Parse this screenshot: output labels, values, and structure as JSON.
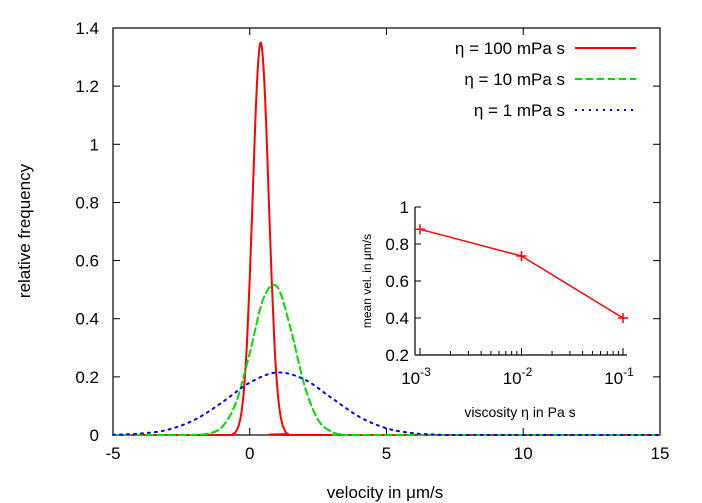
{
  "chart_data": [
    {
      "type": "line",
      "xlabel": "velocity in μm/s",
      "ylabel": "relative frequency",
      "xlim": [
        -5,
        15
      ],
      "ylim": [
        0,
        1.4
      ],
      "xticks": [
        -5,
        0,
        5,
        10,
        15
      ],
      "yticks": [
        0,
        0.2,
        0.4,
        0.6,
        0.8,
        1,
        1.2,
        1.4
      ],
      "xtick_labels": [
        "-5",
        "0",
        "5",
        "10",
        "15"
      ],
      "ytick_labels": [
        "0",
        "0.2",
        "0.4",
        "0.6",
        "0.8",
        "1",
        "1.2",
        "1.4"
      ],
      "grid": false,
      "legend_placement": "top-right",
      "series": [
        {
          "name": "η = 100 mPa s",
          "color": "#ff0000",
          "style": "solid",
          "x": [
            -5,
            -1,
            -0.6,
            -0.5,
            -0.4,
            -0.3,
            -0.2,
            -0.1,
            0,
            0.1,
            0.2,
            0.3,
            0.4,
            0.5,
            0.6,
            0.7,
            0.8,
            0.9,
            1.0,
            1.1,
            1.2,
            1.3,
            1.4,
            1.8,
            15
          ],
          "y": [
            0,
            0,
            0.004,
            0.013,
            0.034,
            0.08,
            0.17,
            0.32,
            0.54,
            0.8,
            1.07,
            1.27,
            1.35,
            1.27,
            1.07,
            0.8,
            0.54,
            0.32,
            0.17,
            0.08,
            0.034,
            0.013,
            0.004,
            0,
            0
          ]
        },
        {
          "name": "η = 10 mPa s",
          "color": "#00dd00",
          "style": "dashed",
          "x": [
            -5,
            -2.5,
            -2,
            -1.5,
            -1,
            -0.5,
            0,
            0.5,
            1,
            1.5,
            2,
            2.5,
            3,
            3.5,
            4,
            15
          ],
          "y": [
            0,
            0,
            0.001,
            0.005,
            0.029,
            0.112,
            0.282,
            0.469,
            0.51,
            0.364,
            0.171,
            0.052,
            0.011,
            0.001,
            0,
            0
          ]
        },
        {
          "name": "η = 1 mPa s",
          "color": "#0000ff",
          "style": "dotted",
          "x": [
            -5,
            -4,
            -3,
            -2,
            -1,
            0,
            1,
            2,
            3,
            4,
            5,
            6,
            7,
            8,
            15
          ],
          "y": [
            0.001,
            0.005,
            0.018,
            0.053,
            0.113,
            0.18,
            0.215,
            0.191,
            0.127,
            0.063,
            0.023,
            0.006,
            0.001,
            0,
            0
          ]
        }
      ]
    },
    {
      "type": "line",
      "xlabel": "viscosity η in Pa s",
      "ylabel": "mean vel. in μm/s",
      "xscale": "log",
      "xlim": [
        0.001,
        0.1
      ],
      "ylim": [
        0.2,
        1
      ],
      "xtick_labels": [
        "10",
        "10",
        "10"
      ],
      "xtick_exponents": [
        "-3",
        "-2",
        "-1"
      ],
      "yticks": [
        0.2,
        0.4,
        0.6,
        0.8,
        1
      ],
      "ytick_labels": [
        "0.2",
        "0.4",
        "0.6",
        "0.8",
        "1"
      ],
      "series": [
        {
          "color": "#ff0000",
          "marker": "plus",
          "x": [
            0.001,
            0.01,
            0.1
          ],
          "y": [
            0.88,
            0.735,
            0.4
          ]
        }
      ]
    }
  ]
}
